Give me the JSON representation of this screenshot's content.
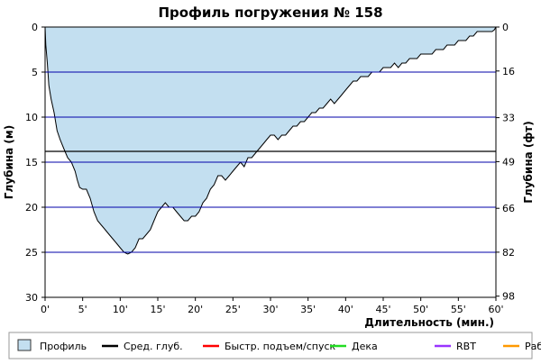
{
  "chart_data": {
    "type": "area",
    "title": "Профиль погружения № 158",
    "xlabel": "Длительность (мин.)",
    "ylabel_left": "Глубина (м)",
    "ylabel_right": "Глубина (фт)",
    "xlim": [
      0,
      60
    ],
    "ylim": [
      0,
      30
    ],
    "y_inverted": true,
    "x_ticks": [
      0,
      5,
      10,
      15,
      20,
      25,
      30,
      35,
      40,
      45,
      50,
      55,
      60
    ],
    "x_tick_labels": [
      "0'",
      "5'",
      "10'",
      "15'",
      "20'",
      "25'",
      "30'",
      "35'",
      "40'",
      "45'",
      "50'",
      "55'",
      "60'"
    ],
    "y_ticks_left": [
      0,
      5,
      10,
      15,
      20,
      25,
      30
    ],
    "y_tick_labels_left": [
      "0",
      "5",
      "10",
      "15",
      "20",
      "25",
      "30"
    ],
    "y_ticks_right": [
      0,
      4.88,
      10.06,
      14.94,
      20.12,
      24.99,
      29.87
    ],
    "y_tick_labels_right": [
      "0",
      "16",
      "33",
      "49",
      "66",
      "82",
      "98"
    ],
    "grid_depths_m": [
      5,
      10,
      15,
      20,
      25
    ],
    "average_depth_m": 13.8,
    "series": [
      {
        "name": "Профиль",
        "color": "#c3dff0",
        "x": [
          0,
          0.1,
          0.3,
          0.5,
          0.8,
          1.2,
          1.6,
          2.0,
          2.5,
          3.0,
          3.5,
          4.0,
          4.3,
          4.6,
          5.0,
          5.5,
          6.0,
          6.5,
          7.0,
          7.5,
          8.0,
          8.5,
          9.0,
          9.5,
          10.0,
          10.5,
          11.0,
          11.5,
          12.0,
          12.5,
          13.0,
          13.5,
          14.0,
          14.5,
          15.0,
          15.5,
          16.0,
          16.5,
          17.0,
          17.5,
          18.0,
          18.5,
          19.0,
          19.5,
          20.0,
          20.5,
          21.0,
          21.5,
          22.0,
          22.5,
          23.0,
          23.5,
          24.0,
          24.5,
          25.0,
          25.5,
          26.0,
          26.5,
          27.0,
          27.5,
          28.0,
          28.5,
          29.0,
          29.5,
          30.0,
          30.5,
          31.0,
          31.5,
          32.0,
          32.5,
          33.0,
          33.5,
          34.0,
          34.5,
          35.0,
          35.5,
          36.0,
          36.5,
          37.0,
          37.5,
          38.0,
          38.5,
          39.0,
          39.5,
          40.0,
          40.5,
          41.0,
          41.5,
          42.0,
          42.5,
          43.0,
          43.5,
          44.0,
          44.5,
          45.0,
          45.5,
          46.0,
          46.5,
          47.0,
          47.5,
          48.0,
          48.5,
          49.0,
          49.5,
          50.0,
          50.5,
          51.0,
          51.5,
          52.0,
          52.5,
          53.0,
          53.5,
          54.0,
          54.5,
          55.0,
          55.5,
          56.0,
          56.5,
          57.0,
          57.5,
          58.0,
          58.5,
          59.0,
          59.5,
          59.8,
          60.0
        ],
        "y": [
          0,
          2.0,
          4.0,
          6.5,
          8.0,
          9.5,
          11.5,
          12.5,
          13.5,
          14.5,
          15.0,
          16.0,
          17.0,
          17.8,
          18.0,
          18.0,
          19.0,
          20.5,
          21.5,
          22.0,
          22.5,
          23.0,
          23.5,
          24.0,
          24.5,
          25.0,
          25.2,
          25.0,
          24.5,
          23.5,
          23.5,
          23.0,
          22.5,
          21.5,
          20.5,
          20.0,
          19.5,
          20.0,
          20.0,
          20.5,
          21.0,
          21.5,
          21.5,
          21.0,
          21.0,
          20.5,
          19.5,
          19.0,
          18.0,
          17.5,
          16.5,
          16.5,
          17.0,
          16.5,
          16.0,
          15.5,
          15.0,
          15.5,
          14.5,
          14.5,
          14.0,
          13.5,
          13.0,
          12.5,
          12.0,
          12.0,
          12.5,
          12.0,
          12.0,
          11.5,
          11.0,
          11.0,
          10.5,
          10.5,
          10.0,
          9.5,
          9.5,
          9.0,
          9.0,
          8.5,
          8.0,
          8.5,
          8.0,
          7.5,
          7.0,
          6.5,
          6.0,
          6.0,
          5.5,
          5.5,
          5.5,
          5.0,
          5.0,
          5.0,
          4.5,
          4.5,
          4.5,
          4.0,
          4.5,
          4.0,
          4.0,
          3.5,
          3.5,
          3.5,
          3.0,
          3.0,
          3.0,
          3.0,
          2.5,
          2.5,
          2.5,
          2.0,
          2.0,
          2.0,
          1.5,
          1.5,
          1.5,
          1.0,
          1.0,
          0.5,
          0.5,
          0.5,
          0.5,
          0.5,
          0.3,
          0
        ]
      }
    ],
    "legend": [
      {
        "label": "Профиль",
        "kind": "swatch",
        "color": "#c3dff0"
      },
      {
        "label": "Сред. глуб.",
        "kind": "line",
        "color": "#000000"
      },
      {
        "label": "Быстр. подъем/спуск",
        "kind": "line",
        "color": "#ff0000"
      },
      {
        "label": "Дека",
        "kind": "line",
        "color": "#22dd22"
      },
      {
        "label": "RBT",
        "kind": "line",
        "color": "#9933ff"
      },
      {
        "label": "Раб.",
        "kind": "line",
        "color": "#ff9900"
      }
    ],
    "colors": {
      "fill": "#c3dff0",
      "outline": "#000000",
      "grid": "#0000aa",
      "avg_line": "#000000"
    }
  }
}
